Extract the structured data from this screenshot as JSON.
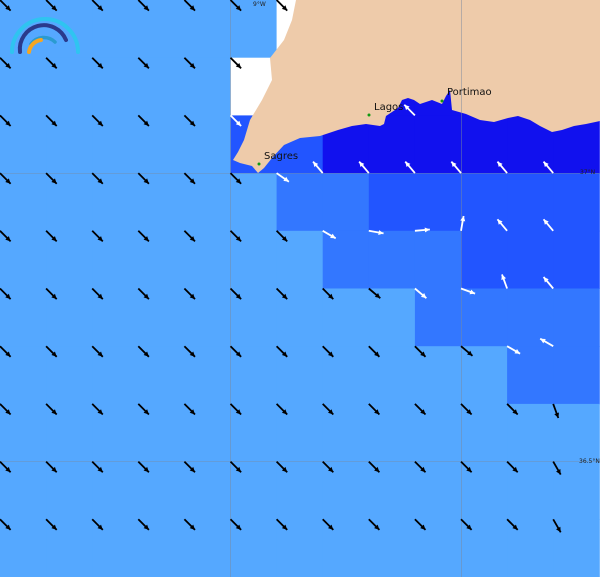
{
  "colors": {
    "light": "#55a8ff",
    "mid": "#3377ff",
    "dark": "#2255ff",
    "darkest": "#1111ee",
    "nodata": "#ffffff",
    "land": "#eecbaa",
    "town": "#119911"
  },
  "grid_cells": [
    "LLLLLLWWWWWWW",
    "LLLLLWWXXXXXX",
    "LLLLLDDXXXXXX",
    "LLLLLLMMDDDDD",
    "LLLLLLLMMMDDD",
    "LLLLLLLLLMMMM",
    "LLLLLLLLLLLMM",
    "LLLLLLLLLLLLL",
    "LLLLLLLLLLLLL",
    "LLLLLLLLLLLLL"
  ],
  "arrow_directions_deg": [
    [
      135,
      135,
      135,
      135,
      135,
      135,
      135,
      null,
      null,
      null,
      null,
      null,
      null
    ],
    [
      135,
      135,
      135,
      135,
      135,
      135,
      null,
      null,
      null,
      null,
      null,
      null,
      null
    ],
    [
      135,
      135,
      135,
      135,
      135,
      135,
      null,
      null,
      null,
      315,
      null,
      null,
      null
    ],
    [
      135,
      135,
      135,
      135,
      135,
      135,
      125,
      320,
      320,
      320,
      320,
      320,
      320
    ],
    [
      135,
      135,
      135,
      135,
      135,
      135,
      135,
      120,
      100,
      85,
      10,
      320,
      320
    ],
    [
      135,
      135,
      135,
      135,
      135,
      135,
      135,
      135,
      130,
      130,
      110,
      340,
      320
    ],
    [
      135,
      135,
      135,
      135,
      135,
      135,
      135,
      135,
      135,
      135,
      130,
      120,
      300
    ],
    [
      135,
      135,
      135,
      135,
      135,
      135,
      135,
      135,
      135,
      135,
      135,
      135,
      160
    ],
    [
      135,
      135,
      135,
      135,
      135,
      135,
      135,
      135,
      135,
      135,
      135,
      135,
      150
    ],
    [
      135,
      135,
      135,
      135,
      135,
      135,
      135,
      135,
      135,
      135,
      135,
      135,
      150
    ]
  ],
  "labels": {
    "lon_9w": "9°W",
    "lat_37n": "37°N",
    "lat_36_5n": "36.5°N"
  },
  "towns": [
    {
      "name": "Sagres"
    },
    {
      "name": "Lagos"
    },
    {
      "name": "Portimao"
    }
  ],
  "logo": {
    "icon": "rainbow-arc-logo"
  }
}
